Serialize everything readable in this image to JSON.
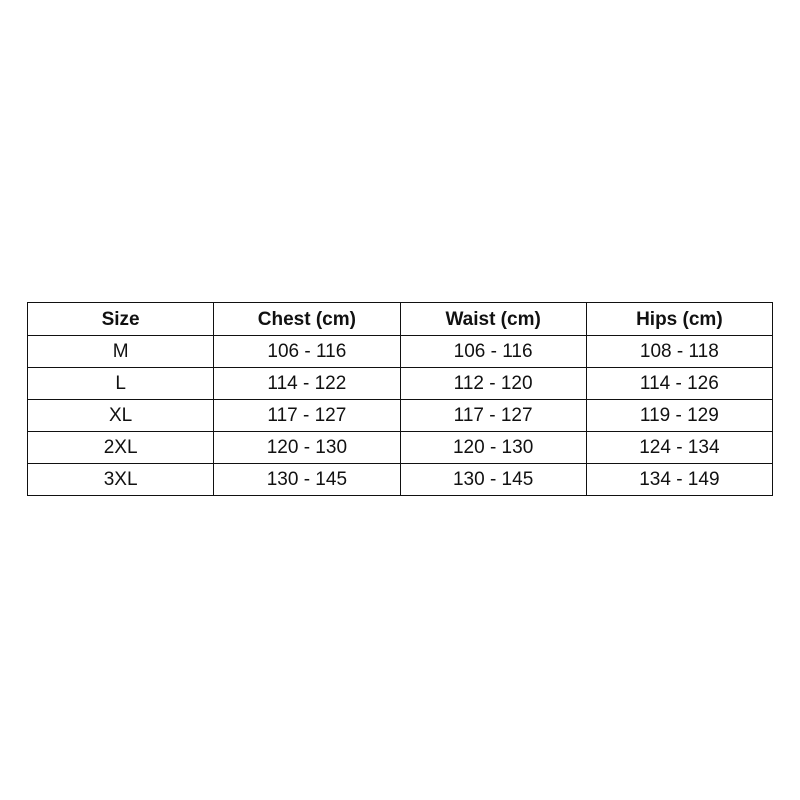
{
  "table": {
    "header": [
      "Size",
      "Chest (cm)",
      "Waist (cm)",
      "Hips (cm)"
    ],
    "rows": [
      [
        "M",
        "106 - 116",
        "106 - 116",
        "108 - 118"
      ],
      [
        "L",
        "114 - 122",
        "112 - 120",
        "114 - 126"
      ],
      [
        "XL",
        "117 - 127",
        "117 - 127",
        "119 - 129"
      ],
      [
        "2XL",
        "120 - 130",
        "120 - 130",
        "124 - 134"
      ],
      [
        "3XL",
        "130 - 145",
        "130 - 145",
        "134 - 149"
      ]
    ]
  }
}
